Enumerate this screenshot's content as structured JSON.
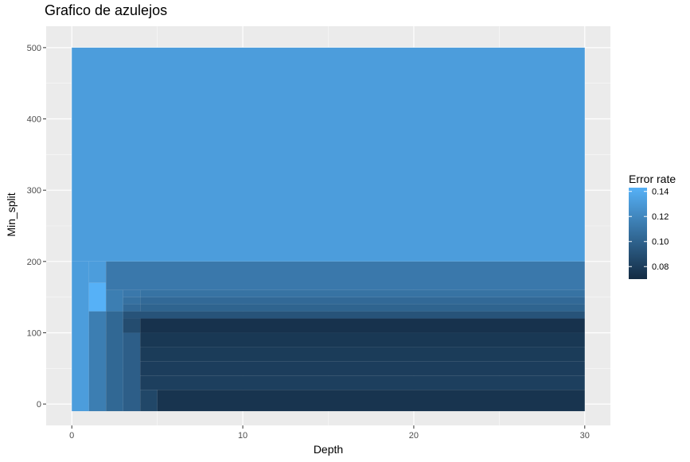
{
  "chart_data": {
    "type": "heatmap",
    "title": "Grafico de azulejos",
    "xlabel": "Depth",
    "ylabel": "Min_split",
    "xlim": [
      -1.5,
      31.5
    ],
    "ylim": [
      -30,
      530
    ],
    "x_ticks": [
      0,
      10,
      20,
      30
    ],
    "y_ticks": [
      0,
      100,
      200,
      300,
      400,
      500
    ],
    "legend": {
      "title": "Error rate",
      "position": "right",
      "min": 0.07,
      "max": 0.143,
      "ticks": [
        0.08,
        0.1,
        0.12,
        0.14
      ],
      "tick_labels": [
        "0.08",
        "0.10",
        "0.12",
        "0.14"
      ],
      "color_low": "#132B43",
      "color_high": "#56B1F7"
    },
    "tiles": [
      {
        "x": [
          0,
          30
        ],
        "y": [
          200,
          500
        ],
        "value": 0.132
      },
      {
        "x": [
          0,
          1
        ],
        "y": [
          -10,
          200
        ],
        "value": 0.132
      },
      {
        "x": [
          1,
          2
        ],
        "y": [
          170,
          200
        ],
        "value": 0.132
      },
      {
        "x": [
          1,
          2
        ],
        "y": [
          130,
          170
        ],
        "value": 0.143
      },
      {
        "x": [
          1,
          2
        ],
        "y": [
          -10,
          130
        ],
        "value": 0.115
      },
      {
        "x": [
          2,
          30
        ],
        "y": [
          160,
          200
        ],
        "value": 0.112
      },
      {
        "x": [
          2,
          3
        ],
        "y": [
          130,
          160
        ],
        "value": 0.115
      },
      {
        "x": [
          2,
          3
        ],
        "y": [
          -10,
          130
        ],
        "value": 0.103
      },
      {
        "x": [
          3,
          4
        ],
        "y": [
          150,
          160
        ],
        "value": 0.112
      },
      {
        "x": [
          4,
          30
        ],
        "y": [
          150,
          160
        ],
        "value": 0.109
      },
      {
        "x": [
          3,
          4
        ],
        "y": [
          140,
          150
        ],
        "value": 0.108
      },
      {
        "x": [
          4,
          30
        ],
        "y": [
          140,
          150
        ],
        "value": 0.104
      },
      {
        "x": [
          3,
          4
        ],
        "y": [
          130,
          140
        ],
        "value": 0.104
      },
      {
        "x": [
          4,
          30
        ],
        "y": [
          130,
          140
        ],
        "value": 0.101
      },
      {
        "x": [
          3,
          30
        ],
        "y": [
          120,
          130
        ],
        "value": 0.092
      },
      {
        "x": [
          3,
          4
        ],
        "y": [
          100,
          120
        ],
        "value": 0.088
      },
      {
        "x": [
          3,
          4
        ],
        "y": [
          -10,
          100
        ],
        "value": 0.098
      },
      {
        "x": [
          4,
          30
        ],
        "y": [
          100,
          120
        ],
        "value": 0.074
      },
      {
        "x": [
          4,
          30
        ],
        "y": [
          80,
          100
        ],
        "value": 0.077
      },
      {
        "x": [
          4,
          30
        ],
        "y": [
          60,
          80
        ],
        "value": 0.079
      },
      {
        "x": [
          4,
          30
        ],
        "y": [
          40,
          60
        ],
        "value": 0.08
      },
      {
        "x": [
          4,
          30
        ],
        "y": [
          20,
          40
        ],
        "value": 0.081
      },
      {
        "x": [
          4,
          5
        ],
        "y": [
          -10,
          20
        ],
        "value": 0.085
      },
      {
        "x": [
          5,
          30
        ],
        "y": [
          -10,
          20
        ],
        "value": 0.075
      }
    ]
  }
}
